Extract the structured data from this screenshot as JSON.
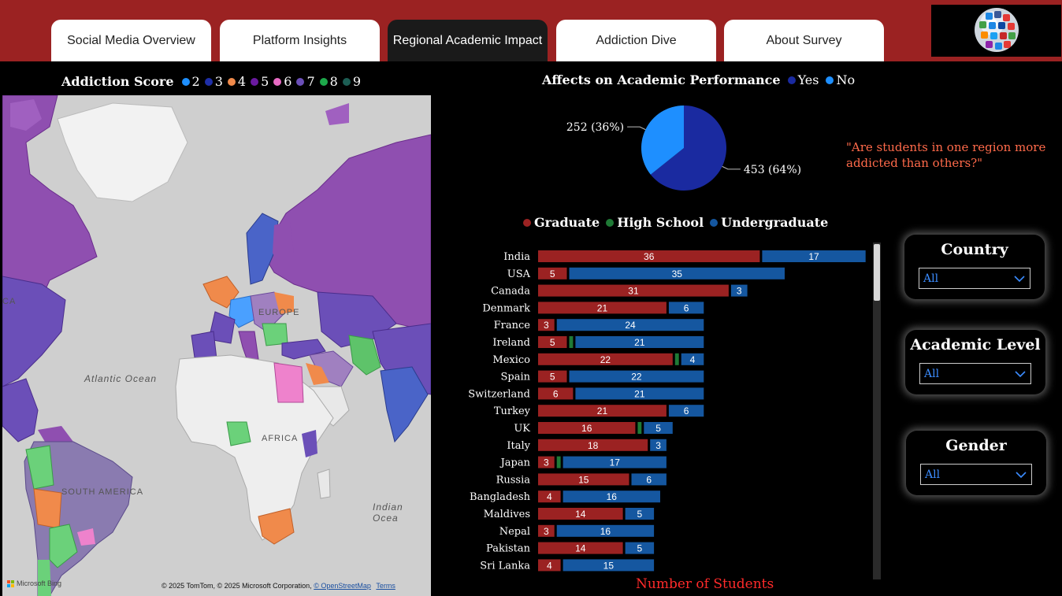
{
  "tabs": [
    {
      "label": "Social Media Overview",
      "active": false
    },
    {
      "label": "Platform Insights",
      "active": false
    },
    {
      "label": "Regional Academic Impact",
      "active": true
    },
    {
      "label": "Addiction Dive",
      "active": false
    },
    {
      "label": "About Survey",
      "active": false
    }
  ],
  "map_legend": {
    "title": "Addiction Score",
    "items": [
      {
        "label": "2",
        "color": "#1e8fff"
      },
      {
        "label": "3",
        "color": "#1f2fa8"
      },
      {
        "label": "4",
        "color": "#f08a4b"
      },
      {
        "label": "5",
        "color": "#6a1aa0"
      },
      {
        "label": "6",
        "color": "#e86bc4"
      },
      {
        "label": "7",
        "color": "#6b4fb8"
      },
      {
        "label": "8",
        "color": "#1da84a"
      },
      {
        "label": "9",
        "color": "#1d5e54"
      }
    ]
  },
  "map": {
    "labels": {
      "ca": "CA",
      "europe": "EUROPE",
      "atlantic": "Atlantic Ocean",
      "africa": "AFRICA",
      "south_america": "SOUTH AMERICA",
      "indian": "Indian Ocea"
    },
    "footer_brand": "Microsoft Bing",
    "footer_credit": "© 2025 TomTom, © 2025 Microsoft Corporation,",
    "footer_osm": "© OpenStreetMap",
    "footer_terms": "Terms"
  },
  "pie": {
    "title": "Affects on Academic Performance",
    "legend": [
      {
        "label": "Yes",
        "color": "#1a2aa0"
      },
      {
        "label": "No",
        "color": "#1e8fff"
      }
    ]
  },
  "quote": "\"Are students in one region more addicted than others?\"",
  "bar_legend": [
    {
      "label": "Graduate",
      "color": "#9b2222"
    },
    {
      "label": "High School",
      "color": "#1f7a36"
    },
    {
      "label": "Undergraduate",
      "color": "#1557a0"
    }
  ],
  "x_label": "Number of Students",
  "slicers": {
    "country": {
      "title": "Country",
      "value": "All"
    },
    "academic": {
      "title": "Academic Level",
      "value": "All"
    },
    "gender": {
      "title": "Gender",
      "value": "All"
    }
  },
  "chart_data": [
    {
      "type": "pie",
      "title": "Affects on Academic Performance",
      "slices": [
        {
          "name": "Yes",
          "value": 453,
          "percent": 64,
          "label": "453 (64%)",
          "color": "#1a2aa0"
        },
        {
          "name": "No",
          "value": 252,
          "percent": 36,
          "label": "252 (36%)",
          "color": "#1e8fff"
        }
      ]
    },
    {
      "type": "bar",
      "orientation": "horizontal",
      "stacked": true,
      "xlabel": "Number of Students",
      "categories": [
        "India",
        "USA",
        "Canada",
        "Denmark",
        "France",
        "Ireland",
        "Mexico",
        "Spain",
        "Switzerland",
        "Turkey",
        "UK",
        "Italy",
        "Japan",
        "Russia",
        "Bangladesh",
        "Maldives",
        "Nepal",
        "Pakistan",
        "Sri Lanka"
      ],
      "series": [
        {
          "name": "Graduate",
          "color": "#9b2222",
          "values": [
            36,
            5,
            31,
            21,
            3,
            5,
            22,
            5,
            6,
            21,
            16,
            18,
            3,
            15,
            4,
            14,
            3,
            14,
            4
          ]
        },
        {
          "name": "High School",
          "color": "#1f7a36",
          "values": [
            0,
            0,
            0,
            0,
            0,
            1,
            1,
            0,
            0,
            0,
            1,
            0,
            1,
            0,
            0,
            0,
            0,
            0,
            0
          ]
        },
        {
          "name": "Undergraduate",
          "color": "#1557a0",
          "values": [
            17,
            35,
            3,
            6,
            24,
            21,
            4,
            22,
            21,
            6,
            5,
            3,
            17,
            6,
            16,
            5,
            16,
            5,
            15
          ]
        }
      ]
    }
  ]
}
